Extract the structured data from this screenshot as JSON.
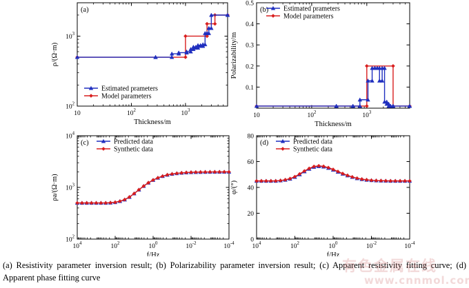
{
  "colors": {
    "blue": "#1f2fbf",
    "red": "#d81e1e",
    "axis": "#000000"
  },
  "caption": "(a) Resistivity parameter inversion result; (b) Polarizability parameter inversion result; (c) Apparent resistivity fitting curve; (d) Apparent phase fitting curve",
  "watermark": {
    "cn": "有色金属在线",
    "url": "www.cnnmol.com"
  },
  "chart_data": [
    {
      "panel": "(a)",
      "type": "line",
      "xlabel": "Thickness/m",
      "ylabel": "ρ/(Ω·m)",
      "xscale": "log",
      "yscale": "log",
      "xlim": [
        10,
        6000
      ],
      "ylim": [
        100,
        3000
      ],
      "xticks": [
        {
          "v": 10,
          "label": "10"
        },
        {
          "v": 100,
          "label": "10^2"
        },
        {
          "v": 1000,
          "label": "10^3"
        }
      ],
      "yticks": [
        {
          "v": 100,
          "label": "10^2"
        },
        {
          "v": 1000,
          "label": "10^3"
        }
      ],
      "legend": "bottom-left",
      "series": [
        {
          "name": "Estimated prameters",
          "color": "blue",
          "marker": "triangle",
          "step": true,
          "x": [
            10,
            280,
            560,
            750,
            1050,
            1250,
            1400,
            1550,
            1700,
            1900,
            2100,
            2300,
            2500,
            2700,
            3000,
            6000
          ],
          "y": [
            500,
            500,
            560,
            580,
            600,
            650,
            700,
            680,
            740,
            720,
            760,
            1100,
            1100,
            1300,
            2000,
            2000
          ]
        },
        {
          "name": "Model parameters",
          "color": "red",
          "marker": "diamond",
          "step": true,
          "x": [
            10,
            1000,
            2500,
            3500,
            6000
          ],
          "y": [
            500,
            1000,
            1500,
            2000,
            2000
          ]
        }
      ]
    },
    {
      "panel": "(b)",
      "type": "line",
      "xlabel": "Thickness/m",
      "ylabel": "Polarizability/m",
      "xscale": "log",
      "yscale": "linear",
      "xlim": [
        10,
        6000
      ],
      "ylim": [
        0,
        0.5
      ],
      "xticks": [
        {
          "v": 10,
          "label": "10"
        },
        {
          "v": 100,
          "label": "10^2"
        },
        {
          "v": 1000,
          "label": "10^3"
        }
      ],
      "yticks": [
        {
          "v": 0.1,
          "label": "0.1"
        },
        {
          "v": 0.2,
          "label": "0.2"
        },
        {
          "v": 0.3,
          "label": "0.3"
        },
        {
          "v": 0.4,
          "label": "0.4"
        },
        {
          "v": 0.5,
          "label": "0.5"
        }
      ],
      "legend": "top-left",
      "series": [
        {
          "name": "Estimated prameters",
          "color": "blue",
          "marker": "triangle",
          "step": true,
          "x": [
            10,
            280,
            560,
            750,
            1050,
            1250,
            1400,
            1550,
            1700,
            1900,
            2100,
            2300,
            2500,
            2700,
            3000,
            6000
          ],
          "y": [
            0.01,
            0.01,
            0.01,
            0.04,
            0.13,
            0.19,
            0.19,
            0.19,
            0.13,
            0.19,
            0.03,
            0.02,
            0.01,
            0.01,
            0.01,
            0.01
          ]
        },
        {
          "name": "Model parameters",
          "color": "red",
          "marker": "diamond",
          "step": true,
          "x": [
            10,
            1000,
            3000,
            6000
          ],
          "y": [
            0.01,
            0.2,
            0.01,
            0.01
          ]
        }
      ]
    },
    {
      "panel": "(c)",
      "type": "line",
      "xlabel": "f/Hz",
      "ylabel": "ρa/(Ω·m)",
      "xscale": "log",
      "xreversed": true,
      "yscale": "log",
      "xlim": [
        10000,
        0.0001
      ],
      "ylim": [
        100,
        10000
      ],
      "xticks": [
        {
          "v": 10000,
          "label": "10^4"
        },
        {
          "v": 100,
          "label": "10^2"
        },
        {
          "v": 1,
          "label": "10^0"
        },
        {
          "v": 0.01,
          "label": "10^-2"
        },
        {
          "v": 0.0001,
          "label": "10^-4"
        }
      ],
      "yticks": [
        {
          "v": 100,
          "label": "10^2"
        },
        {
          "v": 1000,
          "label": "10^3"
        },
        {
          "v": 10000,
          "label": "10^4"
        }
      ],
      "legend": "top-center",
      "x": [
        10000,
        5623,
        3162,
        1778,
        1000,
        562.3,
        316.2,
        177.8,
        100,
        56.23,
        31.62,
        17.78,
        10,
        5.623,
        3.162,
        1.778,
        1,
        0.5623,
        0.3162,
        0.1778,
        0.1,
        0.05623,
        0.03162,
        0.01778,
        0.01,
        0.005623,
        0.003162,
        0.001778,
        0.001,
        0.0005623,
        0.0003162,
        0.0001778,
        0.0001
      ],
      "series": [
        {
          "name": "Predicted data",
          "color": "blue",
          "marker": "triangle",
          "y": [
            500,
            500,
            500,
            500,
            500,
            500,
            500,
            505,
            515,
            540,
            580,
            650,
            760,
            900,
            1060,
            1230,
            1390,
            1530,
            1650,
            1750,
            1820,
            1870,
            1910,
            1940,
            1960,
            1970,
            1980,
            1985,
            1990,
            1992,
            1994,
            1996,
            1998
          ]
        },
        {
          "name": "Synthetic data",
          "color": "red",
          "marker": "diamond",
          "y": [
            500,
            500,
            500,
            500,
            500,
            500,
            500,
            505,
            515,
            540,
            580,
            650,
            760,
            900,
            1060,
            1230,
            1390,
            1530,
            1650,
            1750,
            1820,
            1870,
            1910,
            1940,
            1960,
            1970,
            1980,
            1985,
            1990,
            1992,
            1994,
            1996,
            1998
          ]
        }
      ]
    },
    {
      "panel": "(d)",
      "type": "line",
      "xlabel": "f/Hz",
      "ylabel": "φ/(°)",
      "xscale": "log",
      "xreversed": true,
      "yscale": "linear",
      "xlim": [
        10000,
        0.0001
      ],
      "ylim": [
        0,
        80
      ],
      "xticks": [
        {
          "v": 10000,
          "label": "10^4"
        },
        {
          "v": 100,
          "label": "10^2"
        },
        {
          "v": 1,
          "label": "10^0"
        },
        {
          "v": 0.01,
          "label": "10^-2"
        },
        {
          "v": 0.0001,
          "label": "10^-4"
        }
      ],
      "yticks": [
        {
          "v": 0,
          "label": "0"
        },
        {
          "v": 20,
          "label": "20"
        },
        {
          "v": 40,
          "label": "40"
        },
        {
          "v": 60,
          "label": "60"
        },
        {
          "v": 80,
          "label": "80"
        }
      ],
      "legend": "top-center",
      "x": [
        10000,
        5623,
        3162,
        1778,
        1000,
        562.3,
        316.2,
        177.8,
        100,
        56.23,
        31.62,
        17.78,
        10,
        5.623,
        3.162,
        1.778,
        1,
        0.5623,
        0.3162,
        0.1778,
        0.1,
        0.05623,
        0.03162,
        0.01778,
        0.01,
        0.005623,
        0.003162,
        0.001778,
        0.001,
        0.0005623,
        0.0003162,
        0.0001778,
        0.0001
      ],
      "series": [
        {
          "name": "Predicted data",
          "color": "blue",
          "marker": "triangle",
          "y": [
            45,
            45,
            45,
            45,
            45,
            45.3,
            45.8,
            46.6,
            48,
            50,
            52.3,
            54.3,
            55.8,
            56.3,
            56,
            55,
            53.6,
            52,
            50.5,
            49.2,
            48,
            47,
            46.3,
            45.8,
            45.5,
            45.3,
            45.2,
            45.1,
            45,
            45,
            45,
            45,
            45
          ]
        },
        {
          "name": "Synthetic data",
          "color": "red",
          "marker": "diamond",
          "y": [
            45,
            45,
            45,
            45,
            45,
            45.3,
            45.9,
            46.8,
            48.3,
            50.4,
            52.7,
            54.7,
            56.2,
            56.7,
            56.3,
            55.3,
            53.9,
            52.3,
            50.7,
            49.3,
            48.1,
            47.1,
            46.4,
            45.9,
            45.5,
            45.3,
            45.2,
            45.1,
            45,
            45,
            45,
            45,
            45
          ]
        }
      ]
    }
  ]
}
